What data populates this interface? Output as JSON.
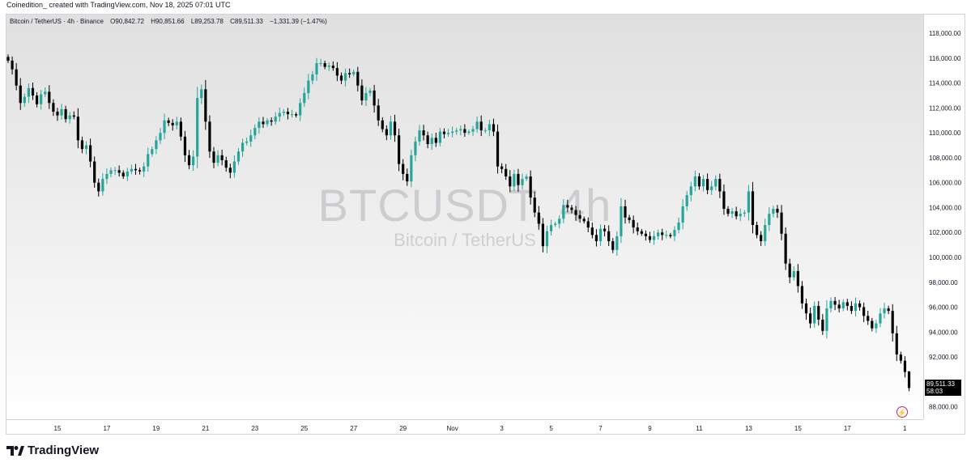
{
  "caption": "Coinedition_ created with TradingView.com, Nov 18, 2025 07:01 UTC",
  "legend": {
    "symbol": "Bitcoin / TetherUS · 4h · Binance",
    "open": "O90,842.72",
    "high": "H90,851.66",
    "low": "L89,253.78",
    "close": "C89,511.33",
    "change": "−1,331.39 (−1.47%)"
  },
  "watermark": {
    "symbol": "BTCUSDT, 4h",
    "description": "Bitcoin / TetherUS"
  },
  "last_price": {
    "price": "89,511.33",
    "countdown": "58:03"
  },
  "brand": {
    "name": "TradingView"
  },
  "colors": {
    "up": "#26a69a",
    "down": "#000000",
    "price_tag": "#000000",
    "alert": "#d81b60"
  },
  "icons": [
    "tradingview-logo-icon",
    "lightning-alert-icon"
  ],
  "chart_data": {
    "type": "candlestick",
    "interval": "4h",
    "ylim": [
      87000,
      119500
    ],
    "y_ticks": [
      88000,
      90000,
      92000,
      94000,
      96000,
      98000,
      100000,
      102000,
      104000,
      106000,
      108000,
      110000,
      112000,
      114000,
      116000,
      118000
    ],
    "y_tick_labels": [
      "88,000.00",
      "90,000.00",
      "92,000.00",
      "94,000.00",
      "96,000.00",
      "98,000.00",
      "100,000.00",
      "102,000.00",
      "104,000.00",
      "106,000.00",
      "108,000.00",
      "110,000.00",
      "112,000.00",
      "114,000.00",
      "116,000.00",
      "118,000.00"
    ],
    "x_labels": [
      "15",
      "17",
      "19",
      "21",
      "23",
      "25",
      "27",
      "29",
      "Nov",
      "3",
      "5",
      "7",
      "9",
      "11",
      "13",
      "15",
      "17",
      "1"
    ],
    "x_label_positions": [
      12,
      24,
      36,
      48,
      60,
      72,
      84,
      96,
      108,
      120,
      132,
      144,
      156,
      168,
      180,
      192,
      204,
      216
    ],
    "closes": [
      115800,
      115100,
      113800,
      112400,
      112900,
      113600,
      113000,
      112300,
      113100,
      113300,
      112400,
      111700,
      111400,
      111900,
      111100,
      111400,
      111300,
      109400,
      108700,
      109000,
      107700,
      106000,
      105300,
      106300,
      106700,
      107000,
      107000,
      106800,
      106500,
      106900,
      107100,
      107000,
      106900,
      107300,
      108300,
      108700,
      109400,
      110000,
      111000,
      110800,
      110600,
      110900,
      109700,
      108200,
      107400,
      108100,
      112800,
      113500,
      110900,
      108500,
      107600,
      108200,
      107800,
      107200,
      106800,
      107700,
      108500,
      109200,
      109300,
      109800,
      110400,
      110900,
      110700,
      111000,
      110900,
      111300,
      111600,
      111700,
      111500,
      111500,
      111400,
      112400,
      113200,
      114200,
      114700,
      115600,
      115600,
      115300,
      115400,
      115200,
      114600,
      114200,
      114800,
      114700,
      114900,
      113800,
      112600,
      113200,
      113400,
      112200,
      111000,
      110300,
      109800,
      110900,
      109800,
      107500,
      106700,
      106100,
      108200,
      109300,
      110200,
      109800,
      109100,
      109600,
      109200,
      110100,
      109900,
      110000,
      110100,
      110200,
      110300,
      110000,
      110100,
      110300,
      110900,
      110200,
      110200,
      110700,
      110100,
      107300,
      107100,
      106500,
      105700,
      106700,
      105800,
      106300,
      106500,
      104800,
      103600,
      102700,
      100900,
      102100,
      102600,
      102700,
      103100,
      104200,
      104000,
      103800,
      103400,
      103100,
      102900,
      102400,
      101800,
      101300,
      102300,
      102100,
      101300,
      100600,
      101700,
      104100,
      103200,
      103000,
      102400,
      102100,
      101900,
      101700,
      101400,
      101700,
      102000,
      101800,
      101800,
      101700,
      102200,
      102800,
      104100,
      105000,
      105700,
      106500,
      105700,
      106300,
      105400,
      105700,
      106300,
      105300,
      103900,
      103500,
      103700,
      103300,
      103500,
      103600,
      105300,
      102600,
      101800,
      101300,
      102600,
      103500,
      103900,
      103600,
      101900,
      99500,
      98400,
      98900,
      97700,
      96300,
      95500,
      94700,
      96100,
      95000,
      94100,
      95900,
      96500,
      96200,
      95900,
      96400,
      96100,
      95700,
      96300,
      96000,
      95300,
      94900,
      94300,
      94700,
      95500,
      95900,
      95700,
      93900,
      92200,
      91700,
      90800,
      89500
    ],
    "last": {
      "open": 90842.72,
      "high": 90851.66,
      "low": 89253.78,
      "close": 89511.33,
      "change": -1331.39,
      "change_pct": -1.47
    }
  }
}
